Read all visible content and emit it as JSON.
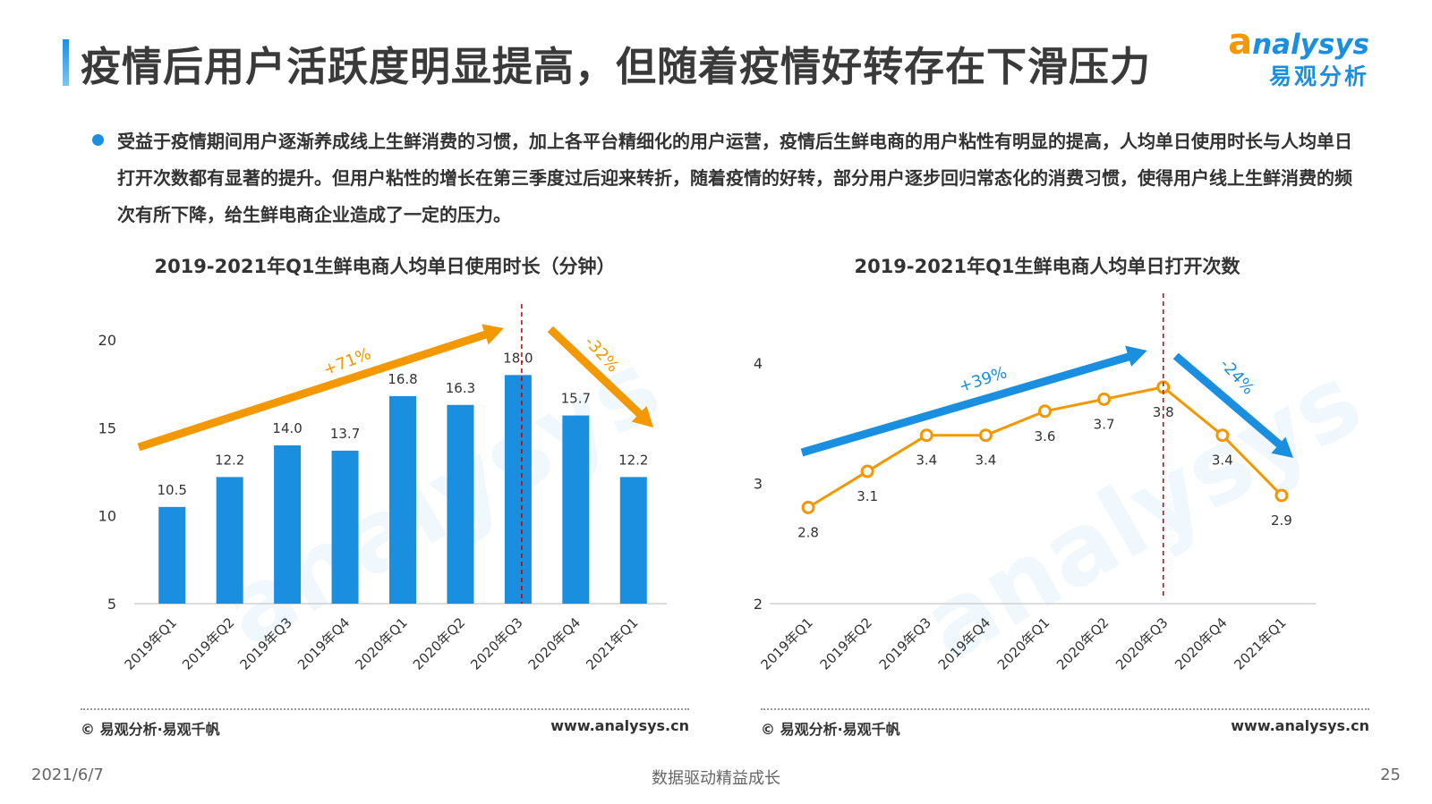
{
  "header": {
    "title": "疫情后用户活跃度明显提高，但随着疫情好转存在下滑压力",
    "logo_brand_initial": "a",
    "logo_brand_rest": "nalysys",
    "logo_cn": "易观分析"
  },
  "bullet_text": "受益于疫情期间用户逐渐养成线上生鲜消费的习惯，加上各平台精细化的用户运营，疫情后生鲜电商的用户粘性有明显的提高，人均单日使用时长与人均单日打开次数都有显著的提升。但用户粘性的增长在第三季度过后迎来转折，随着疫情的好转，部分用户逐步回归常态化的消费习惯，使得用户线上生鲜消费的频次有所下降，给生鲜电商企业造成了一定的压力。",
  "footer": {
    "source": "© 易观分析·易观千帆",
    "url": "www.analysys.cn",
    "date": "2021/6/7",
    "slogan": "数据驱动精益成长",
    "page_number": "25"
  },
  "colors": {
    "blue": "#1a8fe0",
    "orange": "#f39800",
    "dashed_line": "#c00000"
  },
  "chart_data": [
    {
      "type": "bar",
      "title": "2019-2021年Q1生鲜电商人均单日使用时长（分钟）",
      "categories": [
        "2019年Q1",
        "2019年Q2",
        "2019年Q3",
        "2019年Q4",
        "2020年Q1",
        "2020年Q2",
        "2020年Q3",
        "2020年Q4",
        "2021年Q1"
      ],
      "values": [
        10.5,
        12.2,
        14.0,
        13.7,
        16.8,
        16.3,
        18.0,
        15.7,
        12.2
      ],
      "value_labels": [
        "10.5",
        "12.2",
        "14.0",
        "13.7",
        "16.8",
        "16.3",
        "18.0",
        "15.7",
        "12.2"
      ],
      "ylim": [
        5,
        20
      ],
      "yticks": [
        "5",
        "10",
        "15",
        "20"
      ],
      "up_annotation": "+71%",
      "down_annotation": "-32%",
      "divider_after_category": "2020年Q3",
      "bar_color": "#1a8fe0",
      "arrow_color": "#f39800"
    },
    {
      "type": "line",
      "title": "2019-2021年Q1生鲜电商人均单日打开次数",
      "categories": [
        "2019年Q1",
        "2019年Q2",
        "2019年Q3",
        "2019年Q4",
        "2020年Q1",
        "2020年Q2",
        "2020年Q3",
        "2020年Q4",
        "2021年Q1"
      ],
      "values": [
        2.8,
        3.1,
        3.4,
        3.4,
        3.6,
        3.7,
        3.8,
        3.4,
        2.9
      ],
      "value_labels": [
        "2.8",
        "3.1",
        "3.4",
        "3.4",
        "3.6",
        "3.7",
        "3.8",
        "3.4",
        "2.9"
      ],
      "ylim": [
        2,
        4
      ],
      "yticks": [
        "2",
        "3",
        "4"
      ],
      "up_annotation": "+39%",
      "down_annotation": "-24%",
      "divider_after_category": "2020年Q3",
      "line_color": "#f39800",
      "arrow_color": "#1a8fe0"
    }
  ]
}
